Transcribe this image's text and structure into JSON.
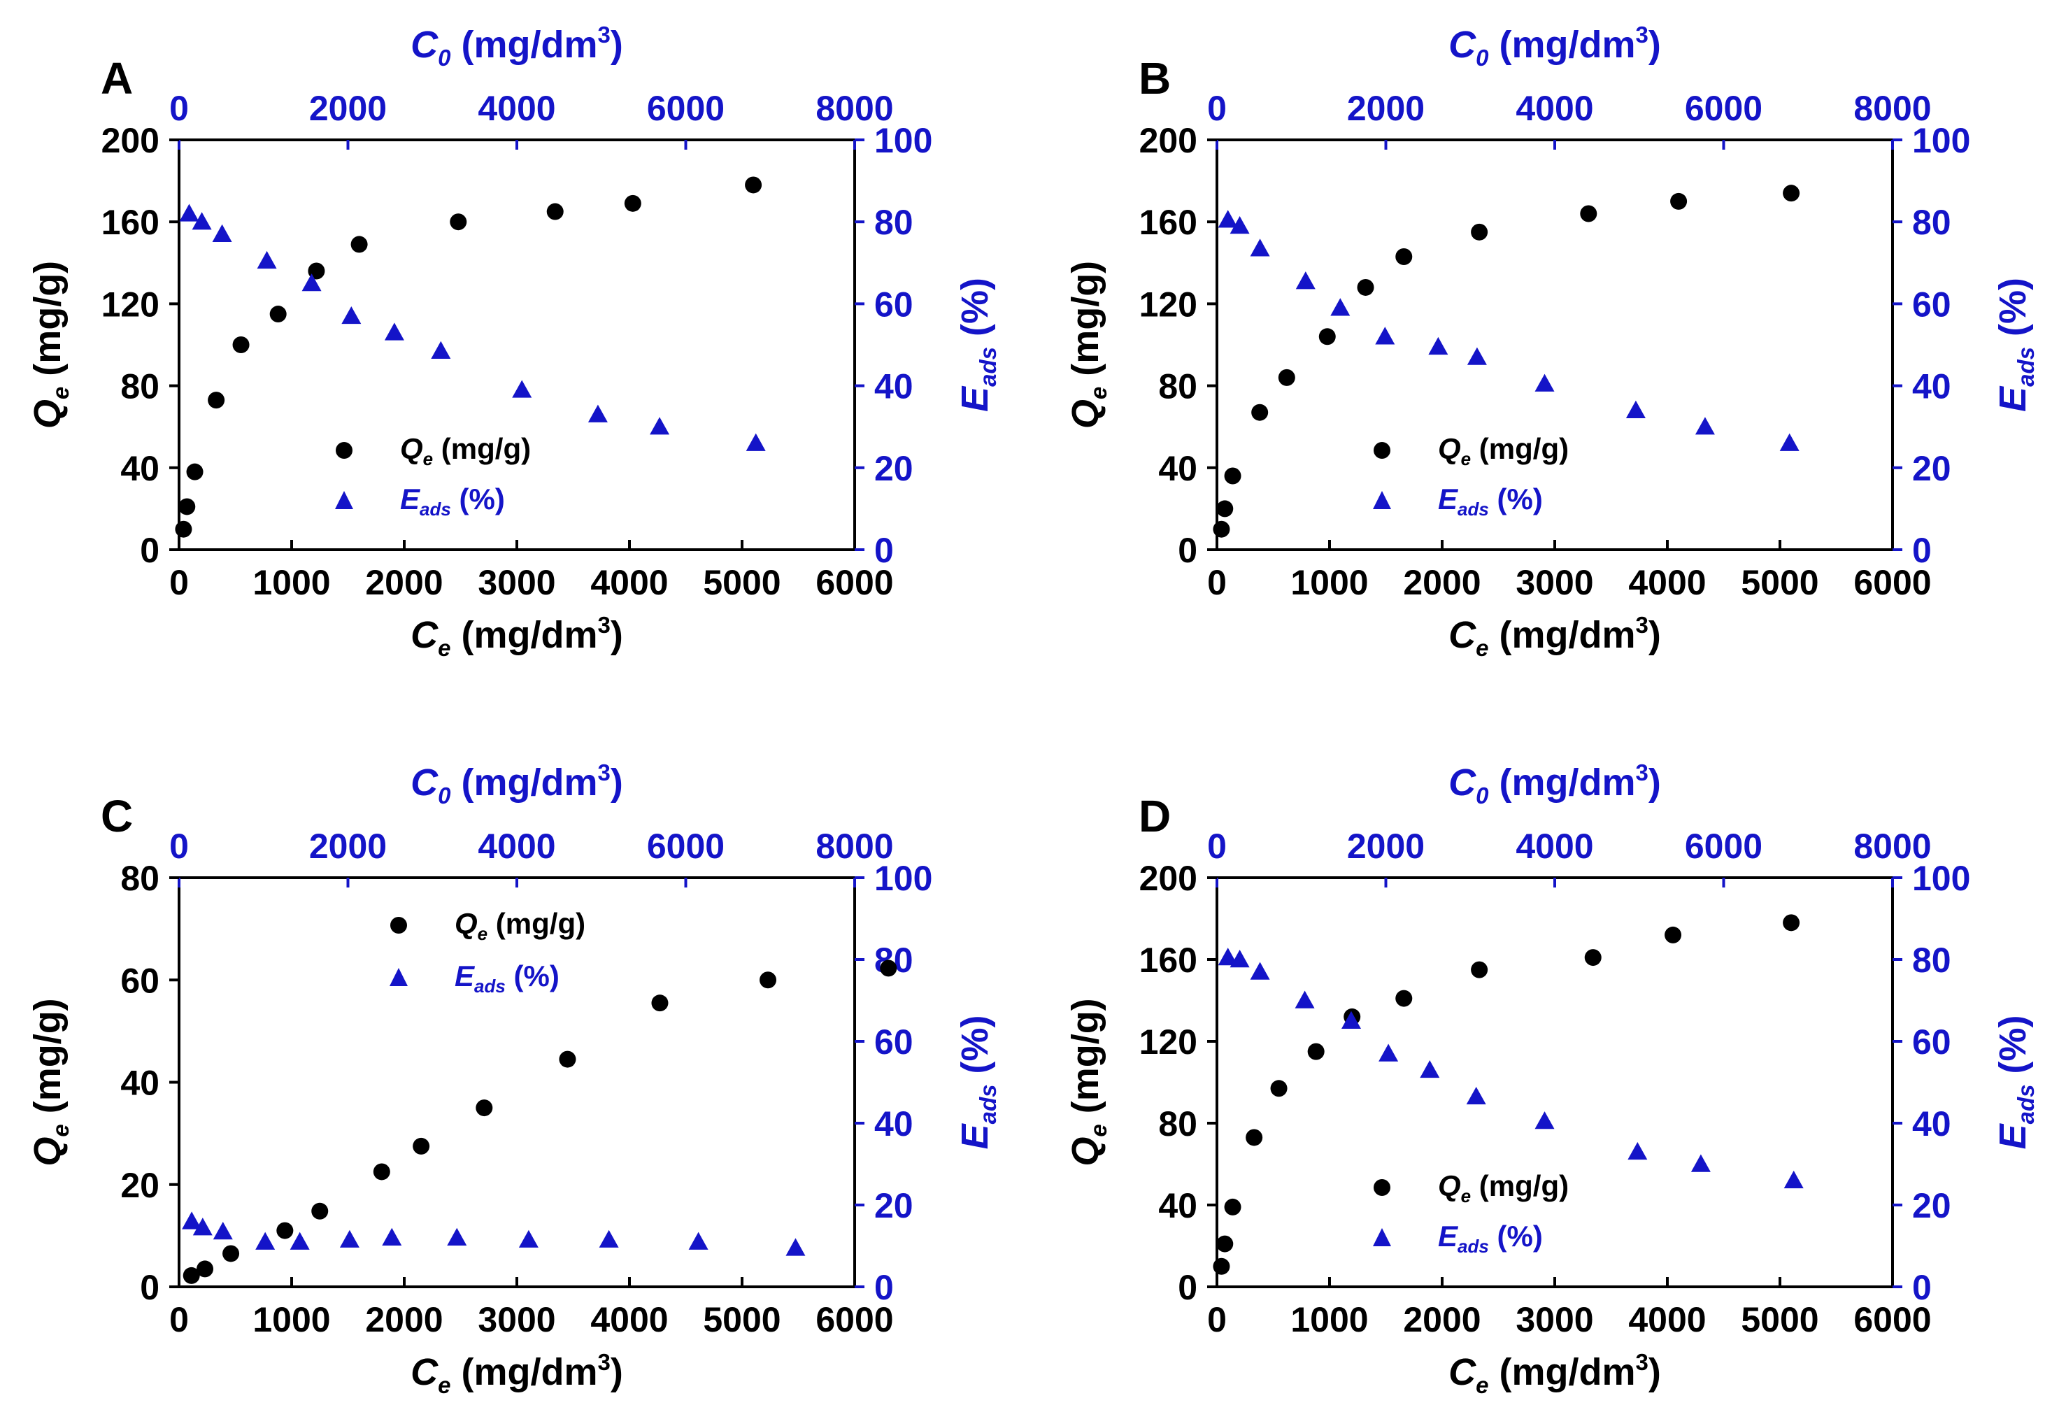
{
  "colors": {
    "qe": "#000000",
    "eads": "#1414c8"
  },
  "axis_titles": {
    "bottom": {
      "symbol": "C",
      "sub": "e",
      "unit": " (mg/dm",
      "sup": "3",
      "close": ")"
    },
    "top": {
      "symbol": "C",
      "sub": "0",
      "unit": " (mg/dm",
      "sup": "3",
      "close": ")"
    },
    "left": {
      "symbol": "Q",
      "sub": "e",
      "unit": " (mg/g)"
    },
    "right": {
      "symbol": "E",
      "sub": "ads",
      "unit": " (%)"
    }
  },
  "legend": {
    "qe": {
      "symbol": "Q",
      "sub": "e",
      "unit": " (mg/g)"
    },
    "eads": {
      "symbol": "E",
      "sub": "ads",
      "unit": " (%)"
    }
  },
  "chart_data": [
    {
      "type": "scatter",
      "panel": "A",
      "xlim": [
        0,
        6000
      ],
      "xticks": [
        0,
        1000,
        2000,
        3000,
        4000,
        5000,
        6000
      ],
      "x2lim": [
        0,
        8000
      ],
      "x2ticks": [
        0,
        2000,
        4000,
        6000,
        8000
      ],
      "ylim": [
        0,
        200
      ],
      "yticks": [
        0,
        40,
        80,
        120,
        160,
        200
      ],
      "y2lim": [
        0,
        100
      ],
      "y2ticks": [
        0,
        20,
        40,
        60,
        80,
        100
      ],
      "legend_position": "bottom-center",
      "series": [
        {
          "name": "Qe (mg/g)",
          "marker": "circle",
          "axis": "left-bottom",
          "x": [
            40,
            70,
            140,
            330,
            550,
            880,
            1220,
            1600,
            2480,
            3340,
            4030,
            5100
          ],
          "y": [
            10,
            21,
            38,
            73,
            100,
            115,
            136,
            149,
            160,
            165,
            169,
            178
          ]
        },
        {
          "name": "Eads (%)",
          "marker": "triangle",
          "axis": "right-top",
          "x": [
            120,
            270,
            510,
            1040,
            1570,
            2040,
            2550,
            3100,
            4060,
            4960,
            5690,
            6830
          ],
          "y": [
            82,
            80,
            77,
            70.5,
            65,
            57,
            53,
            48.5,
            39,
            33,
            30,
            26
          ]
        }
      ]
    },
    {
      "type": "scatter",
      "panel": "B",
      "xlim": [
        0,
        6000
      ],
      "xticks": [
        0,
        1000,
        2000,
        3000,
        4000,
        5000,
        6000
      ],
      "x2lim": [
        0,
        8000
      ],
      "x2ticks": [
        0,
        2000,
        4000,
        6000,
        8000
      ],
      "ylim": [
        0,
        200
      ],
      "yticks": [
        0,
        40,
        80,
        120,
        160,
        200
      ],
      "y2lim": [
        0,
        100
      ],
      "y2ticks": [
        0,
        20,
        40,
        60,
        80,
        100
      ],
      "legend_position": "bottom-center",
      "series": [
        {
          "name": "Qe (mg/g)",
          "marker": "circle",
          "axis": "left-bottom",
          "x": [
            40,
            70,
            140,
            380,
            620,
            980,
            1320,
            1660,
            2330,
            3300,
            4100,
            5100
          ],
          "y": [
            10,
            20,
            36,
            67,
            84,
            104,
            128,
            143,
            155,
            164,
            170,
            174
          ]
        },
        {
          "name": "Eads (%)",
          "marker": "triangle",
          "axis": "right-top",
          "x": [
            130,
            270,
            510,
            1050,
            1460,
            1990,
            2620,
            3080,
            3880,
            4960,
            5780,
            6780
          ],
          "y": [
            80.5,
            79,
            73.5,
            65.5,
            59,
            52,
            49.5,
            47,
            40.5,
            34,
            30,
            26
          ]
        }
      ]
    },
    {
      "type": "scatter",
      "panel": "C",
      "xlim": [
        0,
        6000
      ],
      "xticks": [
        0,
        1000,
        2000,
        3000,
        4000,
        5000,
        6000
      ],
      "x2lim": [
        0,
        8000
      ],
      "x2ticks": [
        0,
        2000,
        4000,
        6000,
        8000
      ],
      "ylim": [
        0,
        80
      ],
      "yticks": [
        0,
        20,
        40,
        60,
        80
      ],
      "y2lim": [
        0,
        100
      ],
      "y2ticks": [
        0,
        20,
        40,
        60,
        80,
        100
      ],
      "legend_position": "top-center",
      "series": [
        {
          "name": "Qe (mg/g)",
          "marker": "circle",
          "axis": "left-bottom",
          "x": [
            110,
            230,
            460,
            940,
            1250,
            1800,
            2150,
            2710,
            3450,
            4270,
            5230,
            6300
          ],
          "y": [
            2.2,
            3.5,
            6.5,
            11,
            14.8,
            22.5,
            27.5,
            35,
            44.5,
            55.5,
            60,
            62.3
          ]
        },
        {
          "name": "Eads (%)",
          "marker": "triangle",
          "axis": "right-top",
          "x": [
            150,
            280,
            520,
            1020,
            1430,
            2020,
            2520,
            3290,
            4140,
            5090,
            6150,
            7300
          ],
          "y": [
            16,
            14.5,
            13.5,
            11,
            11,
            11.5,
            12,
            12,
            11.5,
            11.5,
            11,
            9.5
          ]
        }
      ]
    },
    {
      "type": "scatter",
      "panel": "D",
      "xlim": [
        0,
        6000
      ],
      "xticks": [
        0,
        1000,
        2000,
        3000,
        4000,
        5000,
        6000
      ],
      "x2lim": [
        0,
        8000
      ],
      "x2ticks": [
        0,
        2000,
        4000,
        6000,
        8000
      ],
      "ylim": [
        0,
        200
      ],
      "yticks": [
        0,
        40,
        80,
        120,
        160,
        200
      ],
      "y2lim": [
        0,
        100
      ],
      "y2ticks": [
        0,
        20,
        40,
        60,
        80,
        100
      ],
      "legend_position": "bottom-center",
      "series": [
        {
          "name": "Qe (mg/g)",
          "marker": "circle",
          "axis": "left-bottom",
          "x": [
            40,
            70,
            140,
            330,
            550,
            880,
            1200,
            1660,
            2330,
            3340,
            4050,
            5100
          ],
          "y": [
            10,
            21,
            39,
            73,
            97,
            115,
            132,
            141,
            155,
            161,
            172,
            178
          ]
        },
        {
          "name": "Eads (%)",
          "marker": "triangle",
          "axis": "right-top",
          "x": [
            130,
            270,
            510,
            1040,
            1590,
            2030,
            2520,
            3070,
            3880,
            4980,
            5730,
            6830
          ],
          "y": [
            80.5,
            80,
            77,
            70,
            65,
            57,
            53,
            46.5,
            40.5,
            33,
            30,
            26
          ]
        }
      ]
    }
  ]
}
